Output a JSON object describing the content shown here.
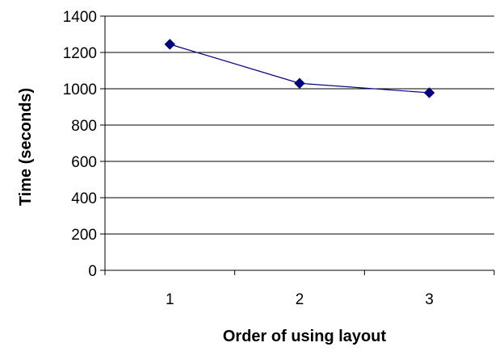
{
  "chart_data": {
    "type": "line",
    "title": "",
    "xlabel": "Order of using layout",
    "ylabel": "Time (seconds)",
    "x": [
      1,
      2,
      3
    ],
    "categories": [
      "1",
      "2",
      "3"
    ],
    "series": [
      {
        "values": [
          1245,
          1030,
          978
        ],
        "color": "#000080",
        "marker": "diamond"
      }
    ],
    "ylim": [
      0,
      1400
    ],
    "yticks": [
      0,
      200,
      400,
      600,
      800,
      1000,
      1200,
      1400
    ],
    "grid": true,
    "legend": "none"
  }
}
